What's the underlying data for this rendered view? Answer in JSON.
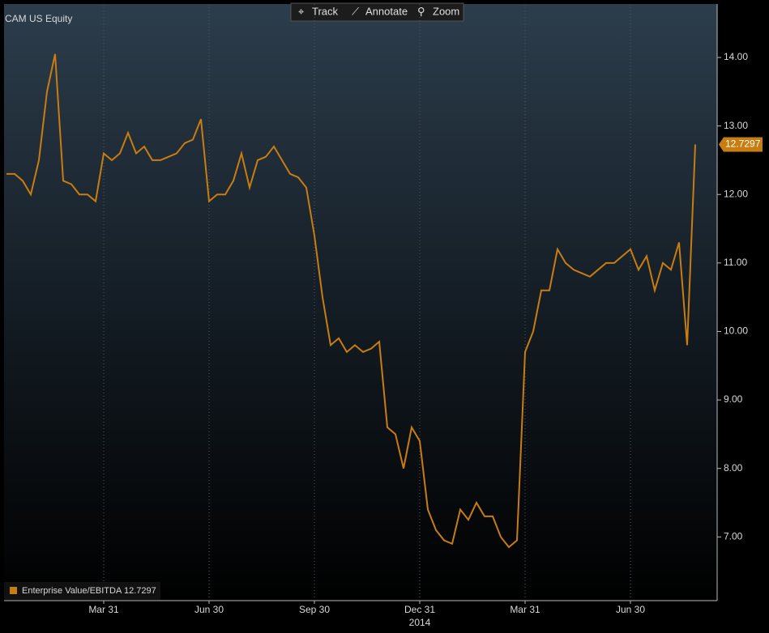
{
  "chart_data": {
    "type": "line",
    "title": "CAM US Equity",
    "toolbar": [
      "Track",
      "Annotate",
      "Zoom"
    ],
    "categories": [
      null,
      null,
      null,
      null,
      null,
      null,
      null,
      null,
      null,
      null,
      null,
      null,
      "Mar 31",
      null,
      null,
      null,
      null,
      null,
      null,
      null,
      null,
      null,
      null,
      null,
      null,
      "Jun 30",
      null,
      null,
      null,
      null,
      null,
      null,
      null,
      null,
      null,
      null,
      null,
      null,
      "Sep 30",
      null,
      null,
      null,
      null,
      null,
      null,
      null,
      null,
      null,
      null,
      null,
      null,
      "Dec 31",
      null,
      null,
      null,
      null,
      null,
      null,
      null,
      null,
      null,
      null,
      null,
      null,
      "Mar 31",
      null,
      null,
      null,
      null,
      null,
      null,
      null,
      null,
      null,
      null,
      null,
      null,
      "Jun 30",
      null,
      null,
      null,
      null,
      null,
      null,
      null,
      null
    ],
    "x_year_label": "2014",
    "series": [
      {
        "name": "Enterprise Value/EBITDA",
        "color": "#c87d10",
        "values": [
          12.3,
          12.3,
          12.2,
          12.0,
          12.5,
          13.5,
          14.05,
          12.2,
          12.15,
          12.0,
          12.0,
          11.9,
          12.6,
          12.5,
          12.6,
          12.9,
          12.6,
          12.7,
          12.5,
          12.5,
          12.55,
          12.6,
          12.75,
          12.8,
          13.1,
          11.9,
          12.0,
          12.0,
          12.2,
          12.6,
          12.1,
          12.5,
          12.55,
          12.7,
          12.5,
          12.3,
          12.25,
          12.1,
          11.4,
          10.5,
          9.8,
          9.9,
          9.7,
          9.8,
          9.7,
          9.75,
          9.85,
          8.6,
          8.5,
          8.0,
          8.6,
          8.4,
          7.4,
          7.1,
          6.95,
          6.9,
          7.4,
          7.25,
          7.5,
          7.3,
          7.3,
          7.0,
          6.85,
          6.95,
          9.7,
          10.0,
          10.6,
          10.6,
          11.2,
          11.0,
          10.9,
          10.85,
          10.8,
          10.9,
          11.0,
          11.0,
          11.1,
          11.2,
          10.9,
          11.1,
          10.6,
          11.0,
          10.9,
          11.3,
          9.8,
          12.7297
        ]
      }
    ],
    "ylim": [
      6.07,
      14.78
    ],
    "yticks": [
      {
        "value": 7,
        "label": "7.00"
      },
      {
        "value": 8,
        "label": "8.00"
      },
      {
        "value": 9,
        "label": "9.00"
      },
      {
        "value": 10,
        "label": "10.00"
      },
      {
        "value": 11,
        "label": "11.00"
      },
      {
        "value": 12,
        "label": "12.00"
      },
      {
        "value": 13,
        "label": "13.00"
      },
      {
        "value": 14,
        "label": "14.00"
      }
    ],
    "grid": true
  }
}
